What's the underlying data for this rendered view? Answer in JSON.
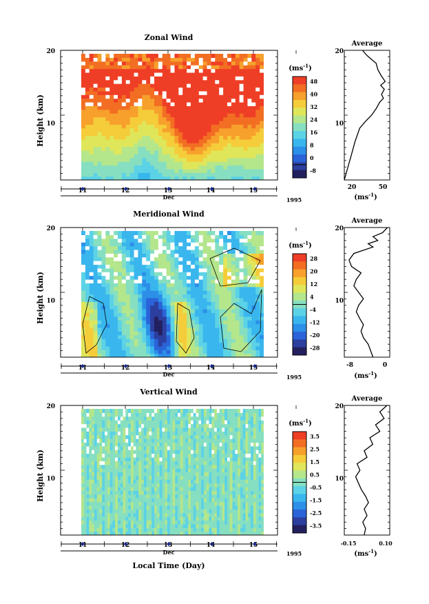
{
  "chart_data": [
    {
      "type": "heatmap",
      "title": "Zonal Wind",
      "ylabel": "Height (km)",
      "xlabel": "Dec",
      "year": "1995",
      "yticks": [
        "20",
        "10"
      ],
      "ylim": [
        0,
        20
      ],
      "xticks": [
        "11",
        "12",
        "13",
        "14",
        "15"
      ],
      "colorbar": {
        "unit": "(ms",
        "unit_exp": "-1",
        "unit_close": ")",
        "labels": [
          "48",
          "40",
          "32",
          "24",
          "16",
          "8",
          "0",
          "-8"
        ]
      },
      "average": {
        "title": "Average",
        "xticks": [
          "20",
          "50"
        ],
        "xlim": [
          5,
          55
        ],
        "xlabel": "(ms",
        "xlabel_exp": "-1",
        "xlabel_close": ")",
        "profile": [
          [
            5,
            0
          ],
          [
            9,
            2
          ],
          [
            13,
            4
          ],
          [
            17,
            6
          ],
          [
            22,
            8
          ],
          [
            28,
            9
          ],
          [
            35,
            10
          ],
          [
            40,
            11
          ],
          [
            44,
            12
          ],
          [
            48,
            12.6
          ],
          [
            46,
            13.2
          ],
          [
            49,
            14
          ],
          [
            45,
            14.6
          ],
          [
            50,
            15.2
          ],
          [
            46,
            16
          ],
          [
            42,
            17
          ],
          [
            40,
            18
          ],
          [
            35,
            18.6
          ],
          [
            30,
            19.2
          ],
          [
            25,
            20
          ]
        ]
      }
    },
    {
      "type": "heatmap",
      "title": "Meridional Wind",
      "ylabel": "Height (km)",
      "xlabel": "Dec",
      "year": "1995",
      "yticks": [
        "20",
        "10"
      ],
      "ylim": [
        0,
        20
      ],
      "xticks": [
        "11",
        "12",
        "13",
        "14",
        "15"
      ],
      "colorbar": {
        "unit": "(ms",
        "unit_exp": "-1",
        "unit_close": ")",
        "labels": [
          "28",
          "20",
          "12",
          "4",
          "-4",
          "-12",
          "-20",
          "-28"
        ]
      },
      "average": {
        "title": "Average",
        "xticks": [
          "-8",
          "0"
        ],
        "xlim": [
          -9,
          0.5
        ],
        "xlabel": "(ms",
        "xlabel_exp": "-1",
        "xlabel_close": ")",
        "profile": [
          [
            -3,
            0
          ],
          [
            -3.5,
            1
          ],
          [
            -4,
            2
          ],
          [
            -5,
            3
          ],
          [
            -5.5,
            4
          ],
          [
            -5,
            5
          ],
          [
            -5.8,
            6
          ],
          [
            -6.5,
            7
          ],
          [
            -6,
            8
          ],
          [
            -5,
            9
          ],
          [
            -6,
            10
          ],
          [
            -7,
            11
          ],
          [
            -6.5,
            12
          ],
          [
            -5.5,
            13
          ],
          [
            -7.5,
            14
          ],
          [
            -8,
            15
          ],
          [
            -7,
            16
          ],
          [
            -3,
            17
          ],
          [
            -4,
            17.5
          ],
          [
            -2,
            18
          ],
          [
            -3,
            18.6
          ],
          [
            -1,
            19.2
          ],
          [
            0,
            20
          ]
        ]
      }
    },
    {
      "type": "heatmap",
      "title": "Vertical Wind",
      "ylabel": "Height (km)",
      "xlabel": "Dec",
      "year": "1995",
      "yticks": [
        "20",
        "10"
      ],
      "ylim": [
        0,
        20
      ],
      "xticks": [
        "11",
        "12",
        "13",
        "14",
        "15"
      ],
      "xaxis_label": "Local Time (Day)",
      "colorbar": {
        "unit": "(ms",
        "unit_exp": "-1",
        "unit_close": ")",
        "labels": [
          "3.5",
          "2.5",
          "1.5",
          "0.5",
          "-0.5",
          "-1.5",
          "-2.5",
          "-3.5"
        ]
      },
      "average": {
        "title": "Average",
        "xticks": [
          "-0.15",
          "0.10"
        ],
        "xlim": [
          -0.2,
          0.12
        ],
        "xlabel": "(ms",
        "xlabel_exp": "-1",
        "xlabel_close": ")",
        "profile": [
          [
            -0.06,
            0
          ],
          [
            -0.05,
            1
          ],
          [
            -0.07,
            2
          ],
          [
            -0.04,
            3
          ],
          [
            -0.06,
            4
          ],
          [
            -0.03,
            5
          ],
          [
            -0.05,
            6
          ],
          [
            -0.08,
            7
          ],
          [
            -0.1,
            8
          ],
          [
            -0.12,
            9
          ],
          [
            -0.09,
            10
          ],
          [
            -0.11,
            11
          ],
          [
            -0.04,
            12
          ],
          [
            -0.06,
            13
          ],
          [
            0.0,
            14
          ],
          [
            -0.02,
            15
          ],
          [
            0.05,
            16
          ],
          [
            0.02,
            17
          ],
          [
            0.08,
            18
          ],
          [
            0.05,
            19
          ],
          [
            0.1,
            20
          ]
        ]
      }
    }
  ]
}
